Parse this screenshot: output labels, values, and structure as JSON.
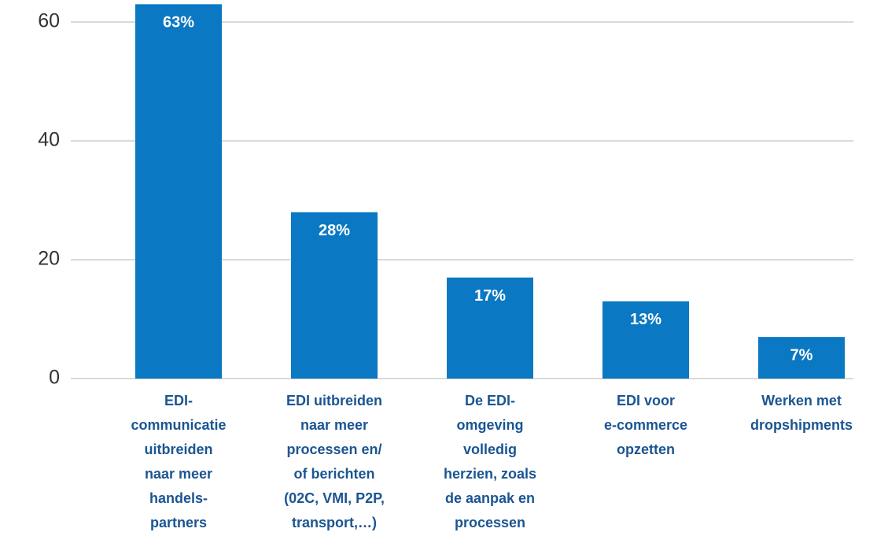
{
  "chart_data": {
    "type": "bar",
    "categories": [
      [
        "EDI-",
        "communicatie",
        "uitbreiden",
        "naar meer",
        "handels-",
        "partners"
      ],
      [
        "EDI uitbreiden",
        "naar meer",
        "processen en/",
        "of berichten",
        "(02C, VMI, P2P,",
        "transport,…)"
      ],
      [
        "De EDI-",
        "omgeving",
        "volledig",
        "herzien, zoals",
        "de aanpak en",
        "processen"
      ],
      [
        "EDI voor",
        "e-commerce",
        "opzetten"
      ],
      [
        "Werken met",
        "dropshipments"
      ]
    ],
    "values": [
      63,
      28,
      17,
      13,
      7
    ],
    "value_labels": [
      "63%",
      "28%",
      "17%",
      "13%",
      "7%"
    ],
    "color": "#0a78c2",
    "ylim": [
      0,
      63.5
    ],
    "yticks": [
      0,
      20,
      40,
      60
    ],
    "grid": true
  }
}
